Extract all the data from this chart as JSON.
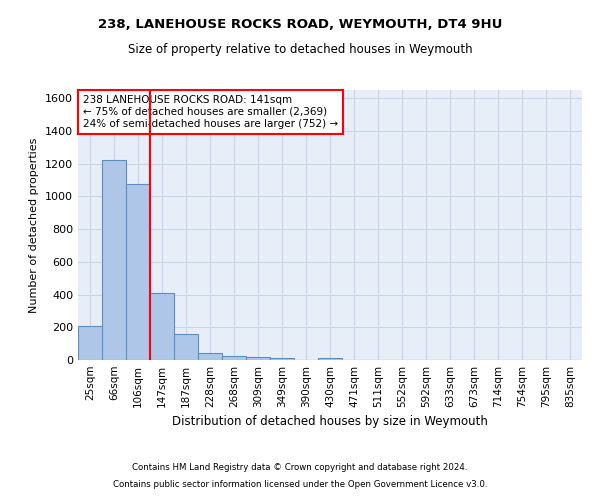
{
  "title1": "238, LANEHOUSE ROCKS ROAD, WEYMOUTH, DT4 9HU",
  "title2": "Size of property relative to detached houses in Weymouth",
  "xlabel": "Distribution of detached houses by size in Weymouth",
  "ylabel": "Number of detached properties",
  "categories": [
    "25sqm",
    "66sqm",
    "106sqm",
    "147sqm",
    "187sqm",
    "228sqm",
    "268sqm",
    "309sqm",
    "349sqm",
    "390sqm",
    "430sqm",
    "471sqm",
    "511sqm",
    "552sqm",
    "592sqm",
    "633sqm",
    "673sqm",
    "714sqm",
    "754sqm",
    "795sqm",
    "835sqm"
  ],
  "values": [
    205,
    1225,
    1075,
    410,
    160,
    45,
    27,
    18,
    13,
    0,
    13,
    0,
    0,
    0,
    0,
    0,
    0,
    0,
    0,
    0,
    0
  ],
  "bar_color": "#aec6e8",
  "bar_edge_color": "#5a8fc2",
  "vline_x_index": 2,
  "vline_color": "red",
  "annotation_text": "238 LANEHOUSE ROCKS ROAD: 141sqm\n← 75% of detached houses are smaller (2,369)\n24% of semi-detached houses are larger (752) →",
  "annotation_box_color": "white",
  "annotation_box_edge": "red",
  "ylim": [
    0,
    1650
  ],
  "yticks": [
    0,
    200,
    400,
    600,
    800,
    1000,
    1200,
    1400,
    1600
  ],
  "grid_color": "#c8d4e8",
  "bg_color": "#e8eef8",
  "footer1": "Contains HM Land Registry data © Crown copyright and database right 2024.",
  "footer2": "Contains public sector information licensed under the Open Government Licence v3.0."
}
